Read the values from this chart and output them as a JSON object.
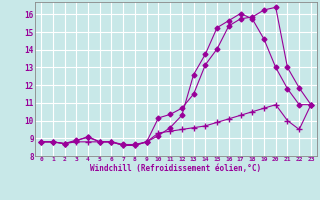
{
  "xlabel": "Windchill (Refroidissement éolien,°C)",
  "background_color": "#c8e8e8",
  "plot_bg_color": "#c8e8e8",
  "grid_color": "#ffffff",
  "line_color": "#990099",
  "xlim": [
    -0.5,
    23.5
  ],
  "ylim": [
    8.0,
    16.7
  ],
  "yticks": [
    8,
    9,
    10,
    11,
    12,
    13,
    14,
    15,
    16
  ],
  "xticks": [
    0,
    1,
    2,
    3,
    4,
    5,
    6,
    7,
    8,
    9,
    10,
    11,
    12,
    13,
    14,
    15,
    16,
    17,
    18,
    19,
    20,
    21,
    22,
    23
  ],
  "series1_x": [
    0,
    1,
    2,
    3,
    4,
    5,
    6,
    7,
    8,
    9,
    10,
    11,
    12,
    13,
    14,
    15,
    16,
    17,
    18,
    19,
    20,
    21,
    22,
    23
  ],
  "series1_y": [
    8.8,
    8.8,
    8.7,
    8.85,
    9.1,
    8.8,
    8.8,
    8.65,
    8.65,
    8.8,
    10.15,
    10.35,
    10.7,
    11.5,
    13.15,
    14.05,
    15.35,
    15.75,
    15.85,
    16.25,
    16.4,
    13.0,
    11.85,
    10.9
  ],
  "series2_x": [
    0,
    1,
    2,
    3,
    4,
    5,
    6,
    7,
    8,
    9,
    10,
    11,
    12,
    13,
    14,
    15,
    16,
    17,
    18,
    19,
    20,
    21,
    22,
    23
  ],
  "series2_y": [
    8.8,
    8.8,
    8.7,
    8.8,
    8.8,
    8.8,
    8.8,
    8.6,
    8.6,
    8.8,
    9.3,
    9.4,
    9.5,
    9.6,
    9.7,
    9.9,
    10.1,
    10.3,
    10.5,
    10.7,
    10.9,
    10.0,
    9.5,
    10.9
  ],
  "series3_x": [
    0,
    1,
    2,
    3,
    4,
    5,
    6,
    7,
    8,
    9,
    10,
    11,
    12,
    13,
    14,
    15,
    16,
    17,
    18,
    19,
    20,
    21,
    22,
    23
  ],
  "series3_y": [
    8.8,
    8.8,
    8.7,
    8.9,
    9.05,
    8.8,
    8.8,
    8.6,
    8.6,
    8.8,
    9.15,
    9.6,
    10.3,
    12.6,
    13.75,
    15.25,
    15.65,
    16.05,
    15.75,
    14.6,
    13.0,
    11.8,
    10.9,
    10.9
  ]
}
